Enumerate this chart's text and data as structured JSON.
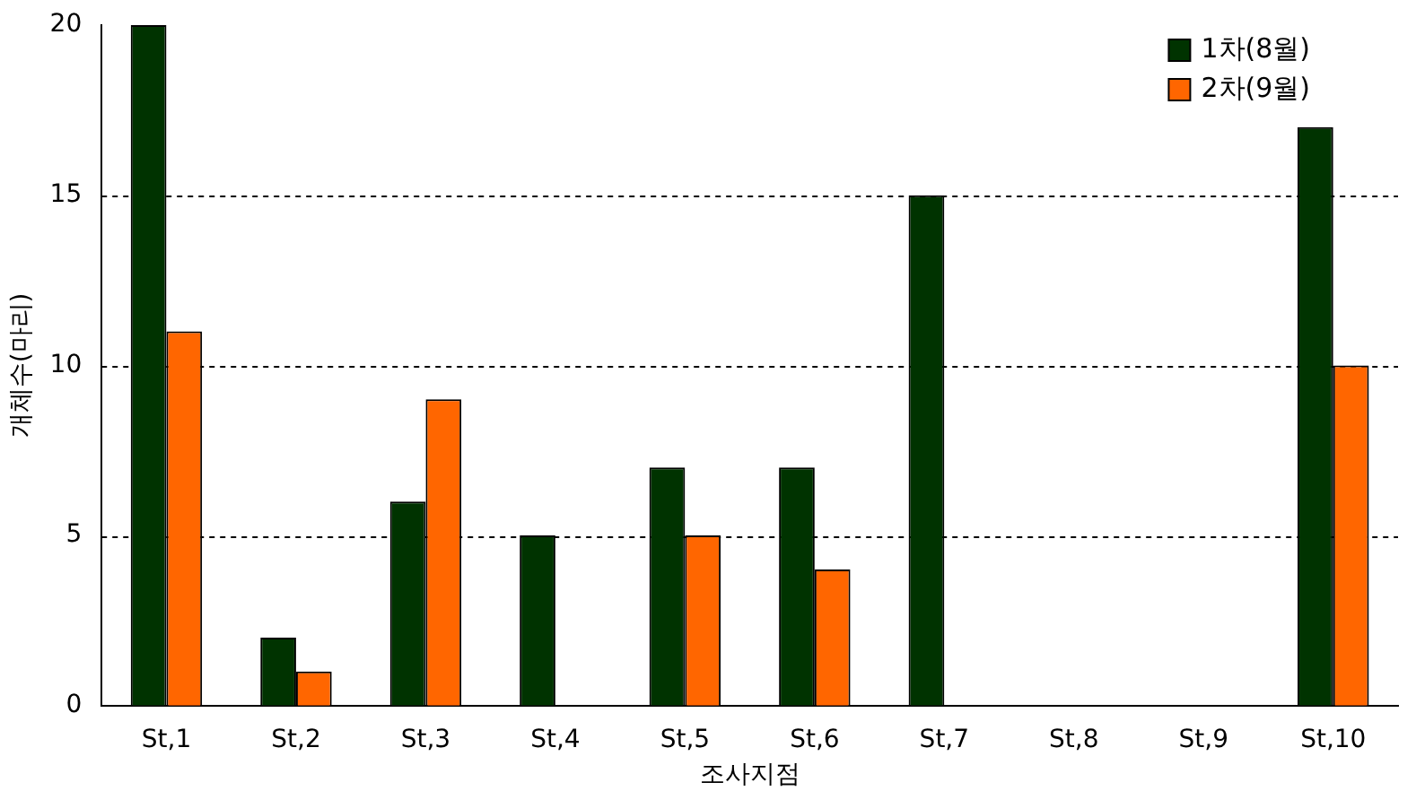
{
  "chart_data": {
    "type": "bar",
    "xlabel": "조사지점",
    "ylabel": "개체수(마리)",
    "categories": [
      "St,1",
      "St,2",
      "St,3",
      "St,4",
      "St,5",
      "St,6",
      "St,7",
      "St,8",
      "St,9",
      "St,10"
    ],
    "series": [
      {
        "name": "1차(8월)",
        "color": "#003300",
        "values": [
          20,
          2,
          6,
          5,
          7,
          7,
          15,
          0,
          0,
          17
        ]
      },
      {
        "name": "2차(9월)",
        "color": "#ff6600",
        "values": [
          11,
          1,
          9,
          0,
          5,
          4,
          0,
          0,
          0,
          10
        ]
      }
    ],
    "ylim": [
      0,
      20
    ],
    "yticks": [
      0,
      5,
      10,
      15,
      20
    ],
    "grid": "y",
    "legend": "top right"
  }
}
